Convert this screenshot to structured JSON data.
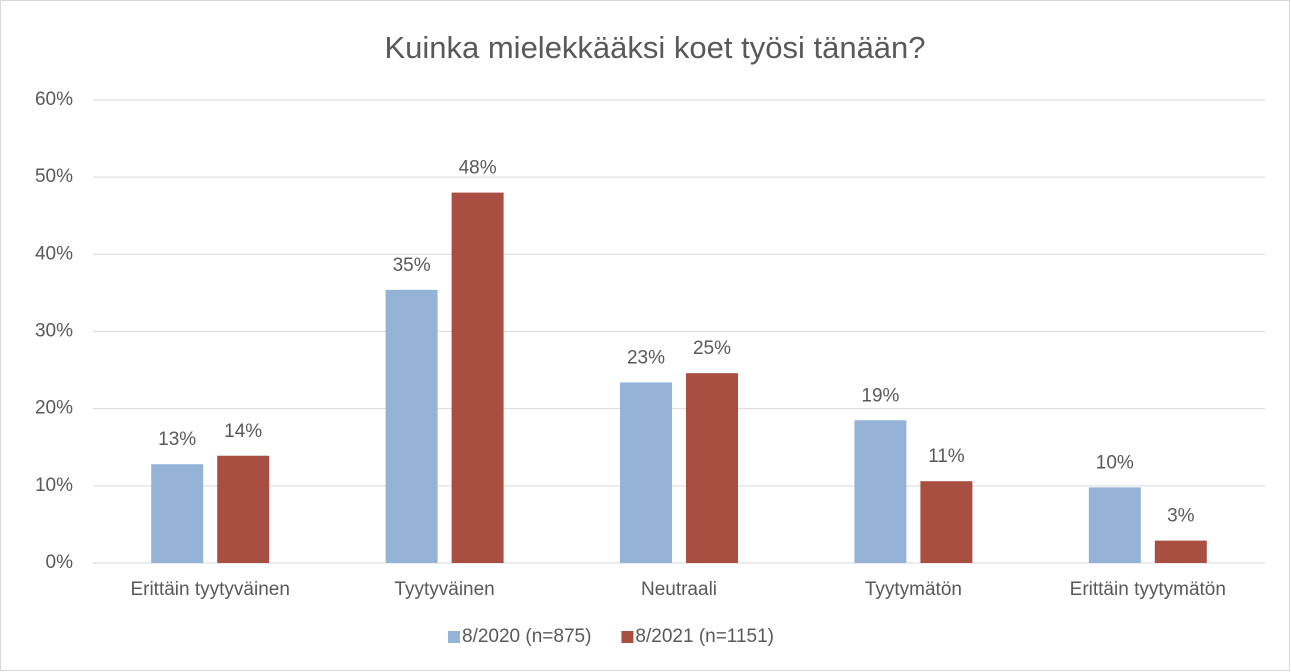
{
  "chart_data": {
    "type": "bar",
    "title": "Kuinka mielekkääksi koet työsi tänään?",
    "categories": [
      "Erittäin tyytyväinen",
      "Tyytyväinen",
      "Neutraali",
      "Tyytymätön",
      "Erittäin tyytymätön"
    ],
    "series": [
      {
        "name": "8/2020 (n=875)",
        "color": "#95b3d7",
        "values": [
          12.8,
          35.4,
          23.4,
          18.5,
          9.8
        ],
        "value_labels": [
          "13%",
          "35%",
          "23%",
          "19%",
          "10%"
        ]
      },
      {
        "name": "8/2021 (n=1151)",
        "color": "#a84f41",
        "values": [
          13.9,
          48,
          24.6,
          10.6,
          2.9
        ],
        "value_labels": [
          "14%",
          "48%",
          "25%",
          "11%",
          "3%"
        ]
      }
    ],
    "ylim": [
      0,
      60
    ],
    "yticks": [
      {
        "value": 0,
        "label": "0%"
      },
      {
        "value": 10,
        "label": "10%"
      },
      {
        "value": 20,
        "label": "20%"
      },
      {
        "value": 30,
        "label": "30%"
      },
      {
        "value": 40,
        "label": "40%"
      },
      {
        "value": 50,
        "label": "50%"
      },
      {
        "value": 60,
        "label": "60%"
      }
    ],
    "grid": true,
    "legend": "bottom"
  }
}
